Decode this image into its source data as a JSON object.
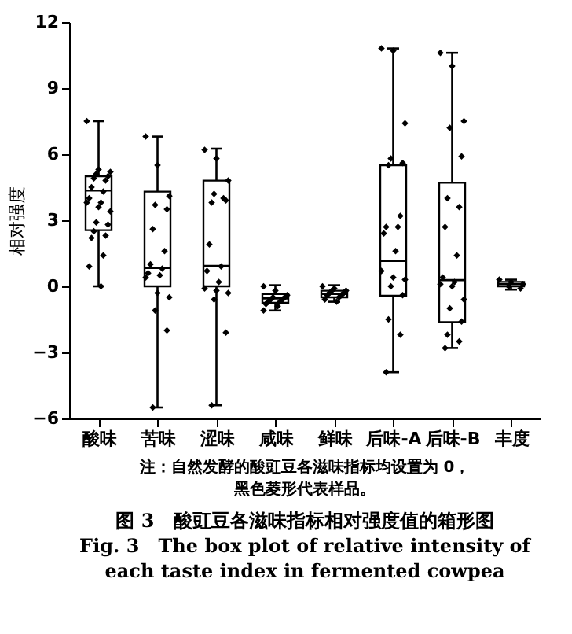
{
  "chart_data": {
    "type": "box",
    "title": "图 3　酸豇豆各滋味指标相对强度值的箱形图",
    "subtitle": "Fig. 3　The box plot of relative intensity of each taste index in fermented cowpea",
    "ylabel": "相对强度",
    "annotations": [
      "注：自然发酵的酸豇豆各滋味指标均设置为 0，",
      "黑色菱形代表样品。"
    ],
    "categories": [
      "酸味",
      "苦味",
      "涩味",
      "咸味",
      "鲜味",
      "后味-A",
      "后味-B",
      "丰度"
    ],
    "boxes": [
      {
        "low": 0,
        "q1": 2.55,
        "median": 4.35,
        "q3": 5.0,
        "high": 7.5
      },
      {
        "low": -5.5,
        "q1": 0,
        "median": 0.83,
        "q3": 4.3,
        "high": 6.8
      },
      {
        "low": -5.4,
        "q1": 0,
        "median": 0.93,
        "q3": 4.8,
        "high": 6.25
      },
      {
        "low": -1.1,
        "q1": -0.75,
        "median": -0.55,
        "q3": -0.35,
        "high": 0.05
      },
      {
        "low": -0.7,
        "q1": -0.5,
        "median": -0.35,
        "q3": -0.2,
        "high": 0.05
      },
      {
        "low": -3.9,
        "q1": -0.43,
        "median": 1.15,
        "q3": 5.5,
        "high": 10.8
      },
      {
        "low": -2.8,
        "q1": -1.62,
        "median": 0.28,
        "q3": 4.7,
        "high": 10.6
      },
      {
        "low": -0.15,
        "q1": 0.0,
        "median": 0.1,
        "q3": 0.2,
        "high": 0.3
      }
    ],
    "series": [
      {
        "type": "scatter",
        "color": "#000000",
        "marker": "diamond",
        "x": [
          "酸味",
          "酸味",
          "酸味",
          "酸味",
          "酸味",
          "酸味",
          "酸味",
          "酸味",
          "酸味",
          "酸味",
          "酸味",
          "酸味",
          "酸味",
          "酸味",
          "酸味",
          "酸味",
          "酸味",
          "酸味",
          "酸味",
          "酸味",
          "酸味",
          "酸味",
          "苦味",
          "苦味",
          "苦味",
          "苦味",
          "苦味",
          "苦味",
          "苦味",
          "苦味",
          "苦味",
          "苦味",
          "苦味",
          "苦味",
          "苦味",
          "苦味",
          "苦味",
          "苦味",
          "苦味",
          "涩味",
          "涩味",
          "涩味",
          "涩味",
          "涩味",
          "涩味",
          "涩味",
          "涩味",
          "涩味",
          "涩味",
          "涩味",
          "涩味",
          "涩味",
          "涩味",
          "涩味",
          "涩味",
          "涩味",
          "咸味",
          "咸味",
          "咸味",
          "咸味",
          "咸味",
          "咸味",
          "咸味",
          "咸味",
          "咸味",
          "咸味",
          "咸味",
          "咸味",
          "鲜味",
          "鲜味",
          "鲜味",
          "鲜味",
          "鲜味",
          "鲜味",
          "鲜味",
          "鲜味",
          "鲜味",
          "鲜味",
          "鲜味",
          "后味-A",
          "后味-A",
          "后味-A",
          "后味-A",
          "后味-A",
          "后味-A",
          "后味-A",
          "后味-A",
          "后味-A",
          "后味-A",
          "后味-A",
          "后味-A",
          "后味-A",
          "后味-A",
          "后味-A",
          "后味-A",
          "后味-A",
          "后味-A",
          "后味-A",
          "后味-B",
          "后味-B",
          "后味-B",
          "后味-B",
          "后味-B",
          "后味-B",
          "后味-B",
          "后味-B",
          "后味-B",
          "后味-B",
          "后味-B",
          "后味-B",
          "后味-B",
          "后味-B",
          "后味-B",
          "后味-B",
          "后味-B",
          "后味-B",
          "后味-B",
          "丰度",
          "丰度",
          "丰度",
          "丰度",
          "丰度"
        ],
        "values": [
          7.5,
          5.3,
          5.2,
          5.1,
          5.0,
          4.9,
          4.8,
          4.5,
          4.3,
          4.0,
          3.8,
          3.8,
          3.6,
          3.4,
          2.9,
          2.8,
          2.5,
          2.3,
          2.2,
          1.4,
          0.9,
          0.0,
          6.8,
          5.5,
          4.1,
          3.7,
          3.5,
          2.6,
          1.6,
          1.0,
          0.8,
          0.6,
          0.5,
          0.4,
          -0.3,
          -0.5,
          -1.1,
          -2.0,
          -5.5,
          6.2,
          5.8,
          4.8,
          4.2,
          3.9,
          3.8,
          4.0,
          1.9,
          0.9,
          0.7,
          0.2,
          -0.1,
          -0.2,
          -0.3,
          -0.6,
          -2.1,
          -5.4,
          0.0,
          -0.2,
          -0.4,
          -0.5,
          -0.5,
          -0.6,
          -0.6,
          -0.7,
          -0.7,
          -0.8,
          -0.9,
          -1.1,
          0.0,
          -0.1,
          -0.2,
          -0.2,
          -0.3,
          -0.3,
          -0.4,
          -0.4,
          -0.5,
          -0.6,
          -0.7,
          10.8,
          10.7,
          7.4,
          5.8,
          5.6,
          5.5,
          3.2,
          2.7,
          2.7,
          2.4,
          1.6,
          0.7,
          0.4,
          0.3,
          0.0,
          -0.4,
          -1.5,
          -2.2,
          -3.9,
          10.6,
          10.0,
          7.5,
          7.2,
          5.9,
          4.0,
          3.6,
          2.7,
          1.4,
          0.4,
          0.2,
          0.1,
          0.0,
          -0.6,
          -1.0,
          -1.6,
          -2.2,
          -2.5,
          -2.8,
          0.3,
          0.2,
          0.1,
          0.0,
          -0.1
        ]
      }
    ],
    "ylim": [
      -6,
      12
    ],
    "yticks": [
      -6,
      -3,
      0,
      3,
      6,
      9,
      12
    ],
    "grid": false
  }
}
